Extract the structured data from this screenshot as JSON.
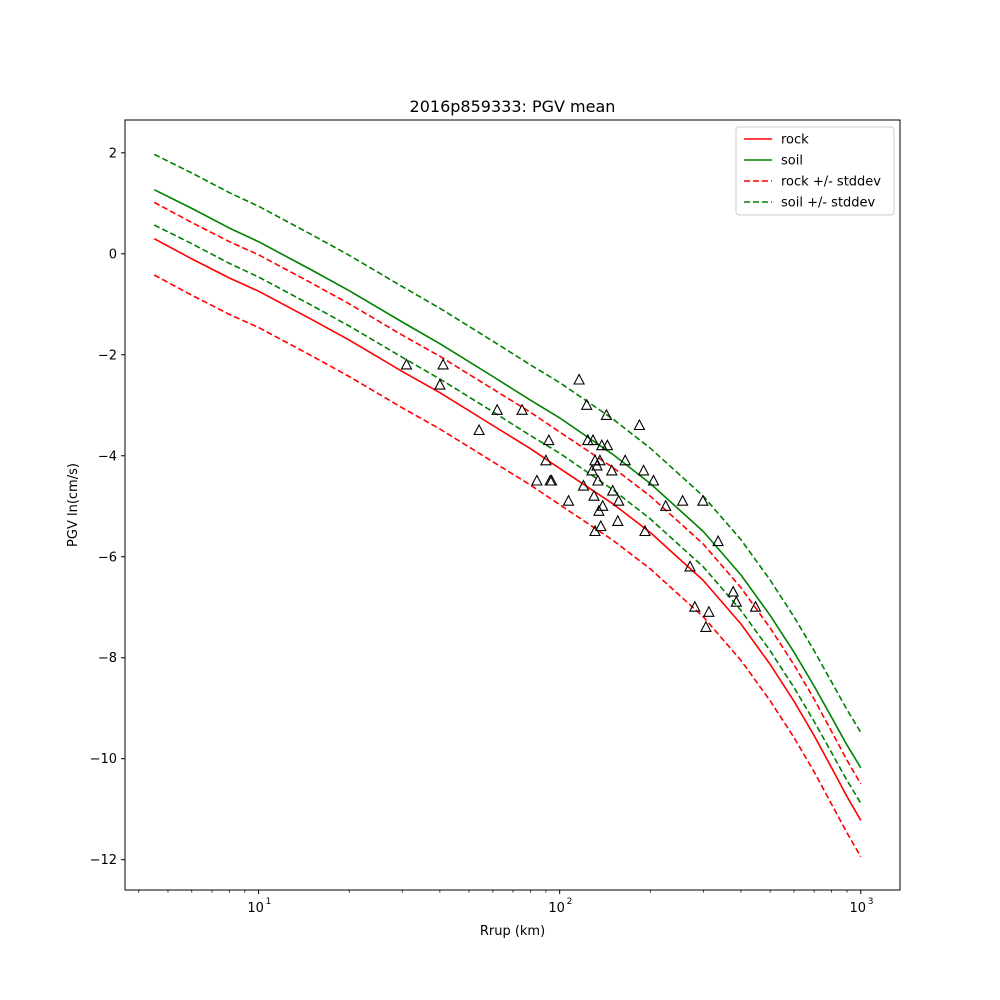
{
  "chart_data": {
    "type": "line",
    "title": "2016p859333: PGV mean",
    "xlabel": "Rrup (km)",
    "ylabel": "PGV ln(cm/s)",
    "xscale": "log",
    "xlim": [
      3.6,
      1350
    ],
    "ylim": [
      -12.6,
      2.65
    ],
    "x_ticks": [
      {
        "value": 10,
        "label": "10",
        "sup": "1"
      },
      {
        "value": 100,
        "label": "10",
        "sup": "2"
      },
      {
        "value": 1000,
        "label": "10",
        "sup": "3"
      }
    ],
    "y_ticks": [
      2,
      0,
      -2,
      -4,
      -6,
      -8,
      -10,
      -12
    ],
    "y_tick_labels": [
      "2",
      "0",
      "−2",
      "−4",
      "−6",
      "−8",
      "−10",
      "−12"
    ],
    "grid": false,
    "legend_position": "top-right",
    "legend": [
      {
        "label": "rock",
        "color": "#ff0000",
        "dash": "solid"
      },
      {
        "label": "soil",
        "color": "#008000",
        "dash": "solid"
      },
      {
        "label": "rock +/- stddev",
        "color": "#ff0000",
        "dash": "dashed"
      },
      {
        "label": "soil +/- stddev",
        "color": "#008000",
        "dash": "dashed"
      }
    ],
    "x": [
      4.5,
      6,
      8,
      10,
      15,
      20,
      30,
      40,
      60,
      80,
      100,
      150,
      200,
      300,
      400,
      500,
      600,
      700,
      800,
      900,
      1000
    ],
    "series": [
      {
        "name": "rock",
        "color": "#ff0000",
        "dash": "solid",
        "values": [
          0.3,
          -0.1,
          -0.48,
          -0.74,
          -1.3,
          -1.71,
          -2.33,
          -2.75,
          -3.4,
          -3.86,
          -4.25,
          -4.95,
          -5.52,
          -6.47,
          -7.33,
          -8.13,
          -8.86,
          -9.54,
          -10.18,
          -10.75,
          -11.22
        ]
      },
      {
        "name": "soil",
        "color": "#008000",
        "dash": "solid",
        "values": [
          1.27,
          0.9,
          0.51,
          0.24,
          -0.32,
          -0.73,
          -1.35,
          -1.78,
          -2.43,
          -2.9,
          -3.25,
          -3.97,
          -4.55,
          -5.5,
          -6.36,
          -7.16,
          -7.89,
          -8.56,
          -9.18,
          -9.73,
          -10.18
        ]
      },
      {
        "name": "rock +/- stddev",
        "color": "#ff0000",
        "dash": "dashed",
        "values": [
          1.02,
          0.62,
          0.24,
          -0.02,
          -0.58,
          -0.99,
          -1.61,
          -2.03,
          -2.68,
          -3.14,
          -3.53,
          -4.23,
          -4.8,
          -5.75,
          -6.61,
          -7.41,
          -8.14,
          -8.82,
          -9.46,
          -10.03,
          -10.5
        ]
      },
      {
        "name": "rock +/- stddev",
        "color": "#ff0000",
        "dash": "dashed",
        "legend": false,
        "values": [
          -0.42,
          -0.82,
          -1.2,
          -1.46,
          -2.02,
          -2.43,
          -3.05,
          -3.47,
          -4.12,
          -4.58,
          -4.97,
          -5.67,
          -6.24,
          -7.19,
          -8.05,
          -8.85,
          -9.58,
          -10.26,
          -10.9,
          -11.47,
          -11.94
        ]
      },
      {
        "name": "soil +/- stddev",
        "color": "#008000",
        "dash": "dashed",
        "values": [
          1.97,
          1.6,
          1.21,
          0.94,
          0.38,
          -0.03,
          -0.65,
          -1.08,
          -1.73,
          -2.2,
          -2.55,
          -3.27,
          -3.85,
          -4.8,
          -5.66,
          -6.46,
          -7.19,
          -7.86,
          -8.48,
          -9.03,
          -9.48
        ]
      },
      {
        "name": "soil +/- stddev",
        "color": "#008000",
        "dash": "dashed",
        "legend": false,
        "values": [
          0.57,
          0.2,
          -0.19,
          -0.46,
          -1.02,
          -1.43,
          -2.05,
          -2.48,
          -3.13,
          -3.6,
          -3.95,
          -4.67,
          -5.25,
          -6.2,
          -7.06,
          -7.86,
          -8.59,
          -9.26,
          -9.88,
          -10.43,
          -10.88
        ]
      }
    ],
    "scatter": {
      "marker": "triangle-open",
      "color": "#000000",
      "points": [
        [
          31,
          -2.2
        ],
        [
          40,
          -2.6
        ],
        [
          41,
          -2.2
        ],
        [
          54,
          -3.5
        ],
        [
          62,
          -3.1
        ],
        [
          75,
          -3.1
        ],
        [
          84,
          -4.5
        ],
        [
          90,
          -4.1
        ],
        [
          92,
          -3.7
        ],
        [
          93,
          -4.5
        ],
        [
          94,
          -4.5
        ],
        [
          107,
          -4.9
        ],
        [
          116,
          -2.5
        ],
        [
          120,
          -4.6
        ],
        [
          123,
          -3.0
        ],
        [
          124,
          -3.7
        ],
        [
          128,
          -4.3
        ],
        [
          129,
          -3.7
        ],
        [
          130,
          -4.8
        ],
        [
          131,
          -4.1
        ],
        [
          131,
          -5.5
        ],
        [
          133,
          -4.2
        ],
        [
          134,
          -4.5
        ],
        [
          135,
          -5.1
        ],
        [
          136,
          -4.1
        ],
        [
          137,
          -5.4
        ],
        [
          138,
          -3.8
        ],
        [
          139,
          -5.0
        ],
        [
          143,
          -3.2
        ],
        [
          144,
          -3.8
        ],
        [
          149,
          -4.3
        ],
        [
          150,
          -4.7
        ],
        [
          156,
          -5.3
        ],
        [
          157,
          -4.9
        ],
        [
          165,
          -4.1
        ],
        [
          184,
          -3.4
        ],
        [
          190,
          -4.3
        ],
        [
          192,
          -5.5
        ],
        [
          205,
          -4.5
        ],
        [
          225,
          -5.0
        ],
        [
          256,
          -4.9
        ],
        [
          271,
          -6.2
        ],
        [
          281,
          -7.0
        ],
        [
          299,
          -4.9
        ],
        [
          306,
          -7.4
        ],
        [
          313,
          -7.1
        ],
        [
          336,
          -5.7
        ],
        [
          377,
          -6.7
        ],
        [
          386,
          -6.9
        ],
        [
          447,
          -7.0
        ]
      ]
    }
  }
}
